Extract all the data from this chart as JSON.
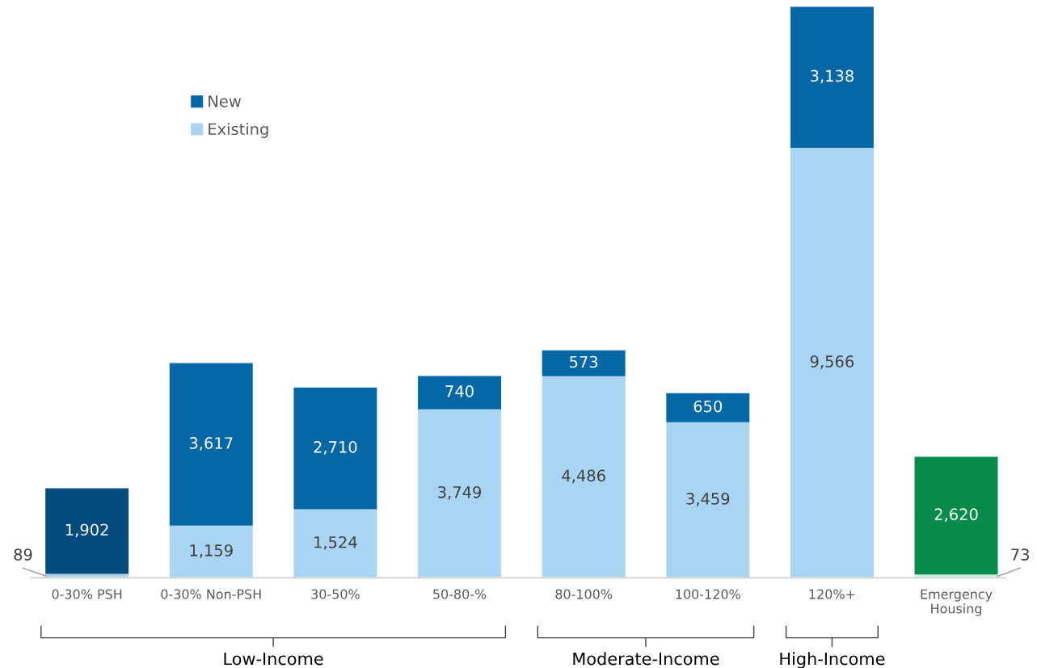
{
  "chart_data": {
    "type": "bar",
    "stacked": true,
    "legend": "top left",
    "grid": false,
    "categories": [
      "0-30% PSH",
      "0-30% Non-PSH",
      "30-50%",
      "50-80-%",
      "80-100%",
      "100-120%",
      "120%+",
      "Emergency\nHousing"
    ],
    "series": [
      {
        "name": "Existing",
        "color": "#a9d5f2",
        "colors": [
          "#a9d5f2",
          "#a9d5f2",
          "#a9d5f2",
          "#a9d5f2",
          "#a9d5f2",
          "#a9d5f2",
          "#a9d5f2",
          "#c9f0dc"
        ],
        "values": [
          89,
          1159,
          1524,
          3749,
          4486,
          3459,
          9566,
          73
        ],
        "value_labels": [
          "89",
          "1,159",
          "1,524",
          "3,749",
          "4,486",
          "3,459",
          "9,566",
          "73"
        ]
      },
      {
        "name": "New",
        "color": "#0567a6",
        "colors": [
          "#064b7e",
          "#0567a6",
          "#0567a6",
          "#0567a6",
          "#0567a6",
          "#0567a6",
          "#0567a6",
          "#068b4b"
        ],
        "values": [
          1902,
          3617,
          2710,
          740,
          573,
          650,
          3138,
          2620
        ],
        "value_labels": [
          "1,902",
          "3,617",
          "2,710",
          "740",
          "573",
          "650",
          "3,138",
          "2,620"
        ]
      }
    ],
    "annotations": [
      "Low-Income",
      "Moderate-Income",
      "High-Income"
    ]
  }
}
